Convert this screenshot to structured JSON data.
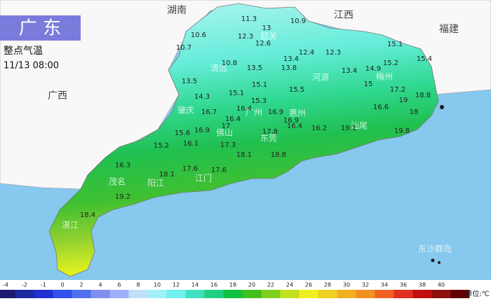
{
  "header": {
    "title": "广 东",
    "subtitle": "整点气温",
    "time": "11/13 08:00"
  },
  "places": [
    "湖南",
    "江西",
    "福建",
    "广西",
    "韶关",
    "清远",
    "河源",
    "梅州",
    "肇庆",
    "广州",
    "惠州",
    "佛山",
    "东莞",
    "茂名",
    "阳江",
    "江门",
    "湛江",
    "汕尾",
    "东沙群岛"
  ],
  "temperatures": [
    11.3,
    13,
    10.9,
    10.6,
    12.3,
    12.6,
    10.7,
    12.3,
    13.4,
    12.4,
    10.8,
    13.5,
    13.8,
    13.4,
    14.9,
    15.2,
    15.4,
    15.1,
    13.5,
    15.1,
    15.5,
    15,
    17.2,
    18.8,
    14.3,
    15.1,
    19,
    16.6,
    16.4,
    16.9,
    15.3,
    18,
    16.7,
    16.9,
    15.6,
    16.9,
    17,
    16.4,
    17.8,
    16.4,
    16.2,
    19.1,
    19.8,
    15.2,
    16.1,
    17.3,
    18.1,
    18.8,
    16.3,
    18.1,
    17.6,
    17.6,
    19.2,
    18.4
  ],
  "legend": {
    "ticks": [
      -4,
      -2,
      -1,
      0,
      2,
      4,
      6,
      8,
      10,
      12,
      14,
      16,
      18,
      20,
      22,
      24,
      26,
      28,
      30,
      32,
      34,
      36,
      38,
      40
    ],
    "colors": [
      "#1a1a6e",
      "#1a2a9e",
      "#2030d0",
      "#3050f0",
      "#5070f0",
      "#8090f0",
      "#a0b0f8",
      "#c0e0f8",
      "#a0f0f8",
      "#70f0f0",
      "#40e0c0",
      "#20d080",
      "#10c040",
      "#40c020",
      "#80d020",
      "#c0e020",
      "#f0f020",
      "#f0d020",
      "#f0b020",
      "#f09020",
      "#f06020",
      "#e03020",
      "#c01010",
      "#901010",
      "#600000"
    ],
    "unit": "单位:℃"
  }
}
